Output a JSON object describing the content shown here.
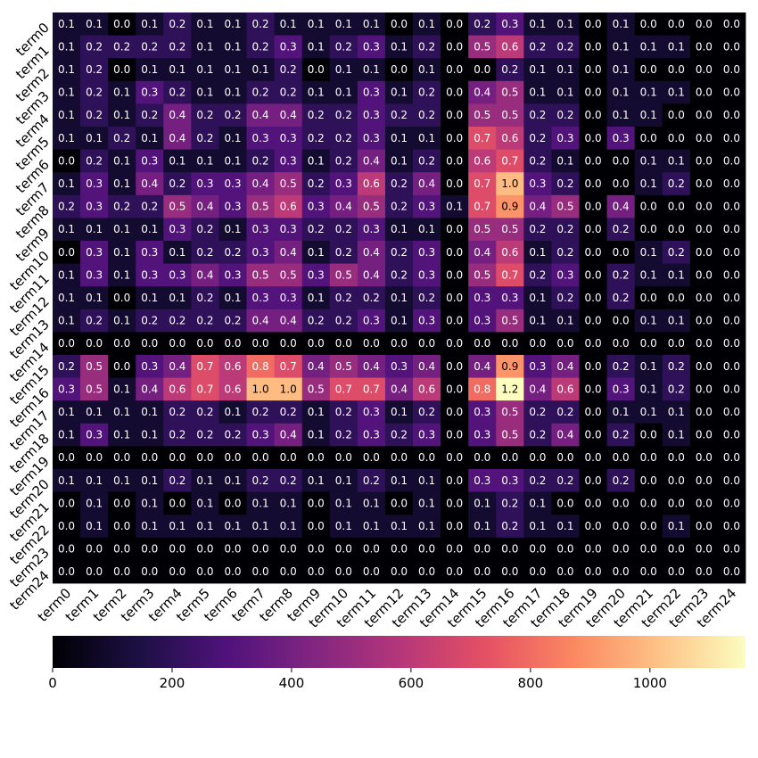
{
  "chart_data": {
    "type": "heatmap",
    "title": "",
    "xlabel": "",
    "ylabel": "",
    "row_labels": [
      "term0",
      "term1",
      "term2",
      "term3",
      "term4",
      "term5",
      "term6",
      "term7",
      "term8",
      "term9",
      "term10",
      "term11",
      "term12",
      "term13",
      "term14",
      "term15",
      "term16",
      "term17",
      "term18",
      "term19",
      "term20",
      "term21",
      "term22",
      "term23",
      "term24"
    ],
    "col_labels": [
      "term0",
      "term1",
      "term2",
      "term3",
      "term4",
      "term5",
      "term6",
      "term7",
      "term8",
      "term9",
      "term10",
      "term11",
      "term12",
      "term13",
      "term14",
      "term15",
      "term16",
      "term17",
      "term18",
      "term19",
      "term20",
      "term21",
      "term22",
      "term23",
      "term24"
    ],
    "cell_labels": [
      [
        "0.1",
        "0.1",
        "0.0",
        "0.1",
        "0.2",
        "0.1",
        "0.1",
        "0.2",
        "0.1",
        "0.1",
        "0.1",
        "0.1",
        "0.0",
        "0.1",
        "0.0",
        "0.2",
        "0.3",
        "0.1",
        "0.1",
        "0.0",
        "0.1",
        "0.0",
        "0.0",
        "0.0",
        "0.0"
      ],
      [
        "0.1",
        "0.2",
        "0.2",
        "0.2",
        "0.2",
        "0.1",
        "0.1",
        "0.2",
        "0.3",
        "0.1",
        "0.2",
        "0.3",
        "0.1",
        "0.2",
        "0.0",
        "0.5",
        "0.6",
        "0.2",
        "0.2",
        "0.0",
        "0.1",
        "0.1",
        "0.1",
        "0.0",
        "0.0"
      ],
      [
        "0.1",
        "0.2",
        "0.0",
        "0.1",
        "0.1",
        "0.1",
        "0.1",
        "0.1",
        "0.2",
        "0.0",
        "0.1",
        "0.1",
        "0.0",
        "0.1",
        "0.0",
        "0.0",
        "0.2",
        "0.1",
        "0.1",
        "0.0",
        "0.1",
        "0.0",
        "0.0",
        "0.0",
        "0.0"
      ],
      [
        "0.1",
        "0.2",
        "0.1",
        "0.3",
        "0.2",
        "0.1",
        "0.1",
        "0.2",
        "0.2",
        "0.1",
        "0.1",
        "0.3",
        "0.1",
        "0.2",
        "0.0",
        "0.4",
        "0.5",
        "0.1",
        "0.1",
        "0.0",
        "0.1",
        "0.1",
        "0.1",
        "0.0",
        "0.0"
      ],
      [
        "0.1",
        "0.2",
        "0.1",
        "0.2",
        "0.4",
        "0.2",
        "0.2",
        "0.4",
        "0.4",
        "0.2",
        "0.2",
        "0.3",
        "0.2",
        "0.2",
        "0.0",
        "0.5",
        "0.5",
        "0.2",
        "0.2",
        "0.0",
        "0.1",
        "0.1",
        "0.0",
        "0.0",
        "0.0"
      ],
      [
        "0.1",
        "0.1",
        "0.2",
        "0.1",
        "0.4",
        "0.2",
        "0.1",
        "0.3",
        "0.3",
        "0.2",
        "0.2",
        "0.3",
        "0.1",
        "0.1",
        "0.0",
        "0.7",
        "0.6",
        "0.2",
        "0.3",
        "0.0",
        "0.3",
        "0.0",
        "0.0",
        "0.0",
        "0.0"
      ],
      [
        "0.0",
        "0.2",
        "0.1",
        "0.3",
        "0.1",
        "0.1",
        "0.1",
        "0.2",
        "0.3",
        "0.1",
        "0.2",
        "0.4",
        "0.1",
        "0.2",
        "0.0",
        "0.6",
        "0.7",
        "0.2",
        "0.1",
        "0.0",
        "0.0",
        "0.1",
        "0.1",
        "0.0",
        "0.0"
      ],
      [
        "0.1",
        "0.3",
        "0.1",
        "0.4",
        "0.2",
        "0.3",
        "0.3",
        "0.4",
        "0.5",
        "0.2",
        "0.3",
        "0.6",
        "0.2",
        "0.4",
        "0.0",
        "0.7",
        "1.0",
        "0.3",
        "0.2",
        "0.0",
        "0.0",
        "0.1",
        "0.2",
        "0.0",
        "0.0"
      ],
      [
        "0.2",
        "0.3",
        "0.2",
        "0.2",
        "0.5",
        "0.4",
        "0.3",
        "0.5",
        "0.6",
        "0.3",
        "0.4",
        "0.5",
        "0.2",
        "0.3",
        "0.1",
        "0.7",
        "0.9",
        "0.4",
        "0.5",
        "0.0",
        "0.4",
        "0.0",
        "0.0",
        "0.0",
        "0.0"
      ],
      [
        "0.1",
        "0.1",
        "0.1",
        "0.1",
        "0.3",
        "0.2",
        "0.1",
        "0.3",
        "0.3",
        "0.2",
        "0.2",
        "0.3",
        "0.1",
        "0.1",
        "0.0",
        "0.5",
        "0.5",
        "0.2",
        "0.2",
        "0.0",
        "0.2",
        "0.0",
        "0.0",
        "0.0",
        "0.0"
      ],
      [
        "0.0",
        "0.3",
        "0.1",
        "0.3",
        "0.1",
        "0.2",
        "0.2",
        "0.3",
        "0.4",
        "0.1",
        "0.2",
        "0.4",
        "0.2",
        "0.3",
        "0.0",
        "0.4",
        "0.6",
        "0.1",
        "0.2",
        "0.0",
        "0.0",
        "0.1",
        "0.2",
        "0.0",
        "0.0"
      ],
      [
        "0.1",
        "0.3",
        "0.1",
        "0.3",
        "0.3",
        "0.4",
        "0.3",
        "0.5",
        "0.5",
        "0.3",
        "0.5",
        "0.4",
        "0.2",
        "0.3",
        "0.0",
        "0.5",
        "0.7",
        "0.2",
        "0.3",
        "0.0",
        "0.2",
        "0.1",
        "0.1",
        "0.0",
        "0.0"
      ],
      [
        "0.1",
        "0.1",
        "0.0",
        "0.1",
        "0.1",
        "0.2",
        "0.1",
        "0.3",
        "0.3",
        "0.1",
        "0.2",
        "0.2",
        "0.1",
        "0.2",
        "0.0",
        "0.3",
        "0.3",
        "0.1",
        "0.2",
        "0.0",
        "0.2",
        "0.0",
        "0.0",
        "0.0",
        "0.0"
      ],
      [
        "0.1",
        "0.2",
        "0.1",
        "0.2",
        "0.2",
        "0.2",
        "0.2",
        "0.4",
        "0.4",
        "0.2",
        "0.2",
        "0.3",
        "0.1",
        "0.3",
        "0.0",
        "0.3",
        "0.5",
        "0.1",
        "0.1",
        "0.0",
        "0.0",
        "0.1",
        "0.1",
        "0.0",
        "0.0"
      ],
      [
        "0.0",
        "0.0",
        "0.0",
        "0.0",
        "0.0",
        "0.0",
        "0.0",
        "0.0",
        "0.0",
        "0.0",
        "0.0",
        "0.0",
        "0.0",
        "0.0",
        "0.0",
        "0.0",
        "0.0",
        "0.0",
        "0.0",
        "0.0",
        "0.0",
        "0.0",
        "0.0",
        "0.0",
        "0.0"
      ],
      [
        "0.2",
        "0.5",
        "0.0",
        "0.3",
        "0.4",
        "0.7",
        "0.6",
        "0.8",
        "0.7",
        "0.4",
        "0.5",
        "0.4",
        "0.3",
        "0.4",
        "0.0",
        "0.4",
        "0.9",
        "0.3",
        "0.4",
        "0.0",
        "0.2",
        "0.1",
        "0.2",
        "0.0",
        "0.0"
      ],
      [
        "0.3",
        "0.5",
        "0.1",
        "0.4",
        "0.6",
        "0.7",
        "0.6",
        "1.0",
        "1.0",
        "0.5",
        "0.7",
        "0.7",
        "0.4",
        "0.6",
        "0.0",
        "0.8",
        "1.2",
        "0.4",
        "0.6",
        "0.0",
        "0.3",
        "0.1",
        "0.2",
        "0.0",
        "0.0"
      ],
      [
        "0.1",
        "0.1",
        "0.1",
        "0.1",
        "0.2",
        "0.2",
        "0.1",
        "0.2",
        "0.2",
        "0.1",
        "0.2",
        "0.3",
        "0.1",
        "0.2",
        "0.0",
        "0.3",
        "0.5",
        "0.2",
        "0.2",
        "0.0",
        "0.1",
        "0.1",
        "0.1",
        "0.0",
        "0.0"
      ],
      [
        "0.1",
        "0.3",
        "0.1",
        "0.1",
        "0.2",
        "0.2",
        "0.2",
        "0.3",
        "0.4",
        "0.1",
        "0.2",
        "0.3",
        "0.2",
        "0.3",
        "0.0",
        "0.3",
        "0.5",
        "0.2",
        "0.4",
        "0.0",
        "0.2",
        "0.0",
        "0.1",
        "0.0",
        "0.0"
      ],
      [
        "0.0",
        "0.0",
        "0.0",
        "0.0",
        "0.0",
        "0.0",
        "0.0",
        "0.0",
        "0.0",
        "0.0",
        "0.0",
        "0.0",
        "0.0",
        "0.0",
        "0.0",
        "0.0",
        "0.0",
        "0.0",
        "0.0",
        "0.0",
        "0.0",
        "0.0",
        "0.0",
        "0.0",
        "0.0"
      ],
      [
        "0.1",
        "0.1",
        "0.1",
        "0.1",
        "0.2",
        "0.1",
        "0.1",
        "0.2",
        "0.2",
        "0.1",
        "0.1",
        "0.2",
        "0.1",
        "0.1",
        "0.0",
        "0.3",
        "0.3",
        "0.2",
        "0.2",
        "0.0",
        "0.2",
        "0.0",
        "0.0",
        "0.0",
        "0.0"
      ],
      [
        "0.0",
        "0.1",
        "0.0",
        "0.1",
        "0.0",
        "0.1",
        "0.0",
        "0.1",
        "0.1",
        "0.0",
        "0.1",
        "0.1",
        "0.0",
        "0.1",
        "0.0",
        "0.1",
        "0.2",
        "0.1",
        "0.0",
        "0.0",
        "0.0",
        "0.0",
        "0.0",
        "0.0",
        "0.0"
      ],
      [
        "0.0",
        "0.1",
        "0.0",
        "0.1",
        "0.1",
        "0.1",
        "0.1",
        "0.1",
        "0.1",
        "0.0",
        "0.1",
        "0.1",
        "0.1",
        "0.1",
        "0.0",
        "0.1",
        "0.2",
        "0.1",
        "0.1",
        "0.0",
        "0.0",
        "0.0",
        "0.1",
        "0.0",
        "0.0"
      ],
      [
        "0.0",
        "0.0",
        "0.0",
        "0.0",
        "0.0",
        "0.0",
        "0.0",
        "0.0",
        "0.0",
        "0.0",
        "0.0",
        "0.0",
        "0.0",
        "0.0",
        "0.0",
        "0.0",
        "0.0",
        "0.0",
        "0.0",
        "0.0",
        "0.0",
        "0.0",
        "0.0",
        "0.0",
        "0.0"
      ],
      [
        "0.0",
        "0.0",
        "0.0",
        "0.0",
        "0.0",
        "0.0",
        "0.0",
        "0.0",
        "0.0",
        "0.0",
        "0.0",
        "0.0",
        "0.0",
        "0.0",
        "0.0",
        "0.0",
        "0.0",
        "0.0",
        "0.0",
        "0.0",
        "0.0",
        "0.0",
        "0.0",
        "0.0",
        "0.0"
      ]
    ],
    "value_scale": 1000,
    "colormap": "magma",
    "colorbar": {
      "orientation": "horizontal",
      "placement": "bottom",
      "range": [
        0,
        1160
      ],
      "ticks": [
        0,
        200,
        400,
        600,
        800,
        1000
      ],
      "tick_labels": [
        "0",
        "200",
        "400",
        "600",
        "800",
        "1000"
      ]
    },
    "grid": false,
    "legend": "none"
  }
}
